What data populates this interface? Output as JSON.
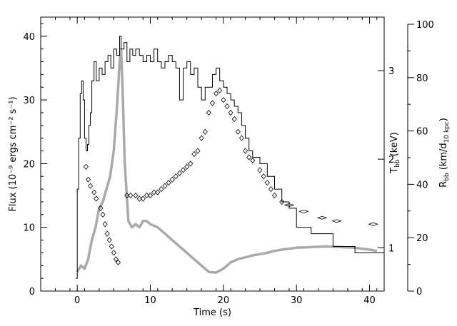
{
  "chart_data": {
    "type": "line",
    "xlabel": "Time (s)",
    "ylabel": "Flux (10⁻⁹ ergs cm⁻² s⁻¹)",
    "y2label": "T",
    "y2label_sub": "bb",
    "y2label_unit": " (keV)",
    "y3label": "R",
    "y3label_sub": "bb",
    "y3label_unit": " (km/d",
    "y3label_unit_sub": "10 kpc",
    "y3label_close": ")",
    "xlim": [
      -5,
      42
    ],
    "ylim": [
      0,
      43
    ],
    "x_ticks": [
      0,
      10,
      20,
      30,
      40
    ],
    "y_ticks": [
      0,
      10,
      20,
      30,
      40
    ],
    "t_ticks": [
      1,
      2,
      3
    ],
    "t_tick_flux": [
      6.8,
      20.7,
      34.6
    ],
    "r_ticks": [
      0,
      20,
      40,
      60,
      80,
      100
    ],
    "r_scale_max": 100,
    "series": [
      {
        "role": "flux",
        "style": "step",
        "color": "#000000",
        "points": [
          [
            -0.2,
            2
          ],
          [
            0,
            16
          ],
          [
            0.2,
            24
          ],
          [
            0.4,
            31
          ],
          [
            0.6,
            33
          ],
          [
            0.8,
            30
          ],
          [
            1,
            24
          ],
          [
            1.2,
            22
          ],
          [
            1.4,
            23
          ],
          [
            1.6,
            26
          ],
          [
            1.8,
            28
          ],
          [
            2,
            33
          ],
          [
            2.3,
            36
          ],
          [
            2.6,
            33
          ],
          [
            3,
            35
          ],
          [
            3.4,
            34
          ],
          [
            3.8,
            36
          ],
          [
            4.2,
            37
          ],
          [
            4.6,
            35
          ],
          [
            5,
            38
          ],
          [
            5.4,
            37
          ],
          [
            5.8,
            40
          ],
          [
            6,
            38
          ],
          [
            6.4,
            39
          ],
          [
            6.8,
            36
          ],
          [
            7.2,
            38
          ],
          [
            7.6,
            37
          ],
          [
            8,
            38
          ],
          [
            8.5,
            37
          ],
          [
            9,
            36
          ],
          [
            9.5,
            37
          ],
          [
            10,
            36
          ],
          [
            10.5,
            38
          ],
          [
            11,
            36
          ],
          [
            11.5,
            35
          ],
          [
            12,
            36
          ],
          [
            12.5,
            37
          ],
          [
            13,
            36
          ],
          [
            13.5,
            35
          ],
          [
            14,
            30
          ],
          [
            14.5,
            35
          ],
          [
            15,
            36
          ],
          [
            15.5,
            34
          ],
          [
            16,
            35
          ],
          [
            16.5,
            32
          ],
          [
            17,
            30
          ],
          [
            17.5,
            32
          ],
          [
            18,
            32
          ],
          [
            18.5,
            34
          ],
          [
            19,
            35
          ],
          [
            19.5,
            33
          ],
          [
            20,
            32
          ],
          [
            20.5,
            31
          ],
          [
            21,
            30
          ],
          [
            21.5,
            29
          ],
          [
            22,
            28
          ],
          [
            22.5,
            26
          ],
          [
            23,
            24
          ],
          [
            23.5,
            22
          ],
          [
            24,
            21
          ],
          [
            25,
            20
          ],
          [
            26,
            18
          ],
          [
            27,
            16
          ],
          [
            28,
            14
          ],
          [
            29,
            13
          ],
          [
            30,
            10
          ],
          [
            32,
            9
          ],
          [
            35,
            7
          ],
          [
            38,
            6
          ],
          [
            42,
            6
          ]
        ]
      },
      {
        "role": "temperature",
        "style": "diamonds",
        "color": "#000000",
        "points": [
          [
            1.2,
            19.5
          ],
          [
            1.5,
            17.5
          ],
          [
            1.8,
            16.5
          ],
          [
            2.3,
            15.5
          ],
          [
            2.6,
            14.5
          ],
          [
            3.2,
            13
          ],
          [
            3.5,
            12
          ],
          [
            3.8,
            10.5
          ],
          [
            4.1,
            9
          ],
          [
            4.4,
            8
          ],
          [
            4.7,
            7
          ],
          [
            5,
            6
          ],
          [
            5.3,
            5
          ],
          [
            5.6,
            4.5
          ],
          [
            6.8,
            15
          ],
          [
            7.3,
            15
          ],
          [
            8,
            15
          ],
          [
            8.5,
            14.5
          ],
          [
            9,
            14.5
          ],
          [
            9.5,
            15
          ],
          [
            10,
            15
          ],
          [
            10.5,
            15.5
          ],
          [
            11,
            15.5
          ],
          [
            11.5,
            16
          ],
          [
            12,
            16.5
          ],
          [
            12.5,
            17
          ],
          [
            13,
            17.5
          ],
          [
            13.5,
            18
          ],
          [
            14,
            18.5
          ],
          [
            14.5,
            19
          ],
          [
            15,
            19.5
          ],
          [
            15.5,
            20
          ],
          [
            16,
            21.5
          ],
          [
            16.5,
            22
          ],
          [
            17,
            24
          ],
          [
            17.5,
            25
          ],
          [
            18,
            28
          ],
          [
            18.5,
            29.5
          ],
          [
            19,
            31
          ],
          [
            19.5,
            31.5
          ],
          [
            20,
            30
          ],
          [
            20.5,
            29
          ],
          [
            21,
            28
          ],
          [
            21.5,
            27
          ],
          [
            22,
            25
          ],
          [
            22.5,
            24
          ],
          [
            23,
            22
          ],
          [
            23.5,
            21
          ],
          [
            24,
            20.5
          ],
          [
            25,
            19
          ],
          [
            25.5,
            18
          ],
          [
            26,
            17
          ],
          [
            26.5,
            16
          ],
          [
            27,
            15
          ],
          [
            28,
            14
          ],
          [
            29,
            13.5
          ],
          [
            31,
            12.5
          ],
          [
            33.5,
            11.5
          ],
          [
            35.5,
            11
          ],
          [
            40.5,
            10.5
          ]
        ]
      },
      {
        "role": "radius",
        "style": "line",
        "color": "#a9a9a9",
        "points": [
          [
            0,
            3
          ],
          [
            0.5,
            4
          ],
          [
            1,
            3.5
          ],
          [
            1.5,
            5
          ],
          [
            2,
            8
          ],
          [
            2.5,
            10
          ],
          [
            3,
            13
          ],
          [
            3.5,
            14
          ],
          [
            4,
            16
          ],
          [
            4.5,
            18
          ],
          [
            5,
            22
          ],
          [
            5.5,
            30
          ],
          [
            5.8,
            36
          ],
          [
            6,
            38
          ],
          [
            6.2,
            32
          ],
          [
            6.5,
            20
          ],
          [
            7,
            11
          ],
          [
            7.5,
            10
          ],
          [
            8,
            10.5
          ],
          [
            8.5,
            10
          ],
          [
            9,
            11
          ],
          [
            9.5,
            11
          ],
          [
            10,
            10.5
          ],
          [
            11,
            10
          ],
          [
            12,
            9
          ],
          [
            13,
            8
          ],
          [
            14,
            7
          ],
          [
            15,
            6
          ],
          [
            16,
            5
          ],
          [
            17,
            4
          ],
          [
            18,
            3
          ],
          [
            19,
            2.9
          ],
          [
            20,
            3.5
          ],
          [
            21,
            4.5
          ],
          [
            22,
            5
          ],
          [
            23,
            5.3
          ],
          [
            24,
            5.6
          ],
          [
            25,
            5.8
          ],
          [
            26,
            6
          ],
          [
            27,
            6.3
          ],
          [
            28,
            6.5
          ],
          [
            30,
            6.8
          ],
          [
            32,
            6.9
          ],
          [
            34,
            7
          ],
          [
            36,
            6.9
          ],
          [
            38,
            6.8
          ],
          [
            40,
            6.5
          ],
          [
            41,
            6.3
          ]
        ]
      }
    ],
    "grid": false,
    "legend": "none"
  }
}
